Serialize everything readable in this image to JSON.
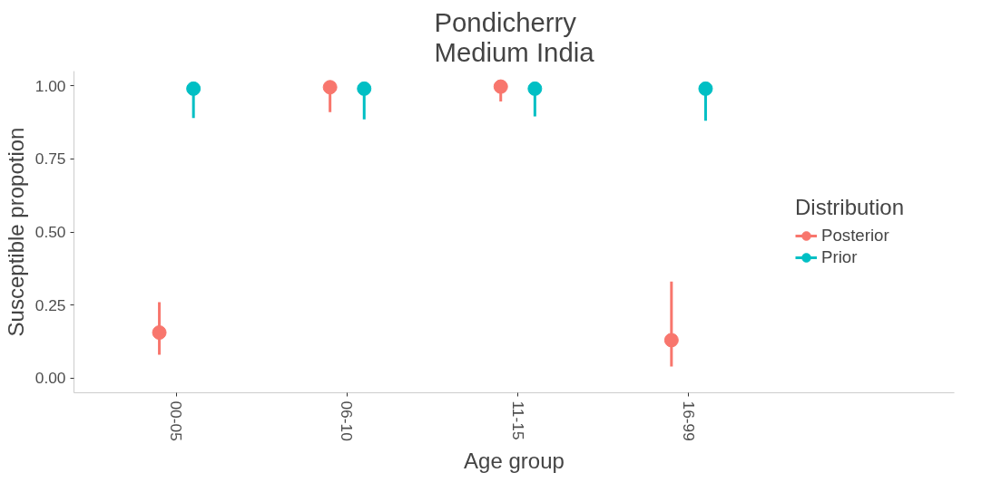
{
  "chart_data": {
    "type": "scatter",
    "title": "Pondicherry\nMedium India",
    "xlabel": "Age group",
    "ylabel": "Susceptible propotion",
    "legend_title": "Distribution",
    "categories": [
      "00-05",
      "06-10",
      "11-15",
      "16-99"
    ],
    "series": [
      {
        "name": "Posterior",
        "color": "#f8766d",
        "values": [
          0.156,
          0.995,
          0.997,
          0.13
        ],
        "errors": [
          [
            0.08,
            0.26
          ],
          [
            0.91,
            0.995
          ],
          [
            0.946,
            0.997
          ],
          [
            0.04,
            0.33
          ]
        ]
      },
      {
        "name": "Prior",
        "color": "#00bfc4",
        "values": [
          0.99,
          0.99,
          0.99,
          0.99
        ],
        "errors": [
          [
            0.89,
            0.99
          ],
          [
            0.885,
            0.99
          ],
          [
            0.895,
            0.99
          ],
          [
            0.88,
            0.99
          ]
        ]
      }
    ],
    "ylim": [
      -0.05,
      1.05
    ],
    "yticks": [
      {
        "value": 0,
        "label": "0.00"
      },
      {
        "value": 0.25,
        "label": "0.25"
      },
      {
        "value": 0.5,
        "label": "0.50"
      },
      {
        "value": 0.75,
        "label": "0.75"
      },
      {
        "value": 1,
        "label": "1.00"
      }
    ],
    "grid": false,
    "legend": "right",
    "marker": "circle"
  }
}
